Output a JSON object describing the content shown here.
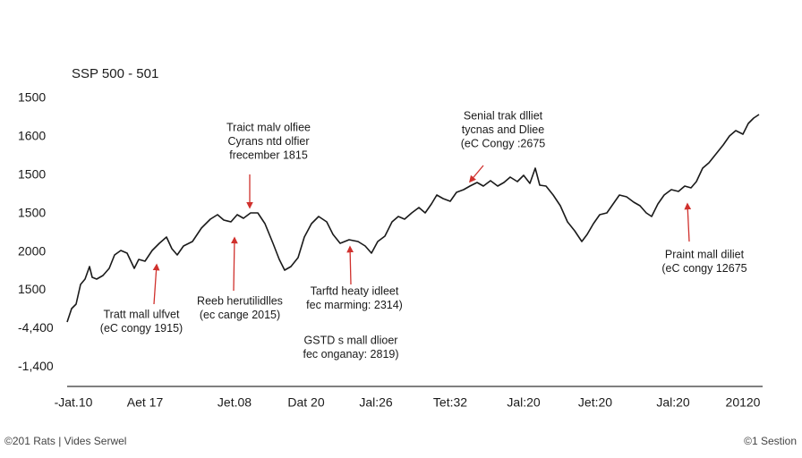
{
  "chart_data": {
    "type": "line",
    "title": "SSP 500 - 501",
    "y_labels": [
      "1500",
      "1600",
      "1500",
      "1500",
      "2000",
      "1500",
      "-4,400",
      "-1,400"
    ],
    "x_labels": [
      "-Jat.10",
      "Aet 17",
      "Jet.08",
      "Dat 20",
      "Jal:26",
      "Tet:32",
      "Jal:20",
      "Jet:20",
      "Jal:20",
      "20120"
    ],
    "xlim": [
      0,
      775
    ],
    "ylim": [
      0,
      350
    ],
    "x": [
      0,
      5,
      10,
      15,
      20,
      25,
      28,
      33,
      40,
      47,
      53,
      60,
      67,
      75,
      80,
      87,
      95,
      103,
      111,
      117,
      123,
      130,
      140,
      150,
      160,
      168,
      175,
      183,
      190,
      197,
      205,
      213,
      221,
      230,
      237,
      243,
      250,
      258,
      265,
      273,
      281,
      290,
      297,
      305,
      315,
      325,
      333,
      340,
      347,
      355,
      363,
      370,
      377,
      385,
      393,
      400,
      407,
      413,
      420,
      428,
      435,
      443,
      450,
      458,
      465,
      473,
      481,
      488,
      495,
      503,
      510,
      517,
      523,
      528,
      535,
      543,
      551,
      559,
      567,
      575,
      581,
      588,
      595,
      603,
      610,
      617,
      625,
      633,
      640,
      647,
      653,
      660,
      667,
      675,
      683,
      690,
      697,
      703,
      710,
      717,
      725,
      733,
      740,
      747,
      755,
      761,
      767,
      773
    ],
    "series": [
      {
        "color": "#1a1a1a",
        "values": [
          72,
          87,
          92,
          114,
          120,
          134,
          122,
          120,
          124,
          132,
          147,
          152,
          149,
          132,
          142,
          140,
          152,
          160,
          167,
          154,
          147,
          157,
          162,
          177,
          187,
          192,
          186,
          184,
          192,
          188,
          194,
          194,
          182,
          160,
          142,
          130,
          134,
          144,
          167,
          182,
          190,
          184,
          170,
          160,
          164,
          162,
          157,
          149,
          162,
          168,
          184,
          190,
          187,
          194,
          200,
          194,
          204,
          214,
          210,
          207,
          217,
          220,
          224,
          228,
          224,
          230,
          224,
          228,
          234,
          229,
          236,
          227,
          244,
          225,
          224,
          214,
          202,
          184,
          174,
          162,
          170,
          182,
          192,
          194,
          204,
          214,
          212,
          206,
          202,
          194,
          190,
          204,
          214,
          220,
          218,
          224,
          222,
          229,
          244,
          250,
          260,
          270,
          280,
          286,
          282,
          294,
          300,
          304
        ]
      }
    ],
    "annotations": [
      {
        "lines": [
          "Traict malv olfiee",
          "Cyrans ntd olfier",
          "frecember 1815"
        ]
      },
      {
        "lines": [
          "Senial trak dlliet",
          "tycnas and Dliee",
          "(eC Congy :2675"
        ]
      },
      {
        "lines": [
          "Praint mall diliet",
          "(eC congy 12675"
        ]
      },
      {
        "lines": [
          "Tratt mall ulfvet",
          "(eC congy 1915)"
        ]
      },
      {
        "lines": [
          "Reeb herutilidlles",
          "(ec cange 2015)"
        ]
      },
      {
        "lines": [
          "Tarftd heaty idleet",
          "fec marming: 2314)"
        ]
      },
      {
        "lines": [
          "GSTD s mall dlioer",
          "fec onganay: 2819)"
        ]
      }
    ]
  },
  "footer": {
    "left": "©201 Rats | Vides Serwel",
    "right": "©1 Sestion"
  }
}
